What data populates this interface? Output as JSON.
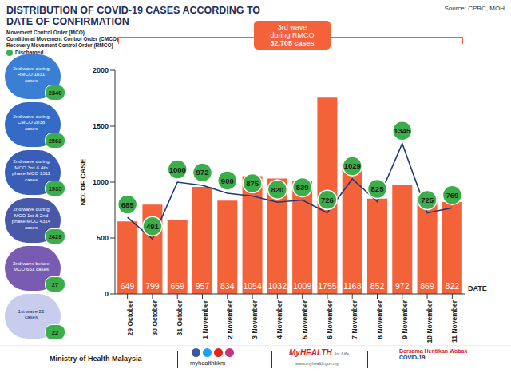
{
  "chart_data": {
    "type": "bar",
    "title": "DISTRIBUTION OF COVID-19 CASES ACCORDING TO DATE OF CONFIRMATION",
    "source": "Source: CPRC, MOH",
    "x_label": "DATE",
    "y_label": "NO. OF CASE",
    "categories": [
      "29 October",
      "30 October",
      "31 October",
      "1 November",
      "2 November",
      "3 November",
      "4 November",
      "5 November",
      "6 November",
      "7 November",
      "8 November",
      "9 November",
      "10 November",
      "11 November"
    ],
    "series": [
      {
        "type": "bar",
        "color": "#f4623a",
        "data_labels": true,
        "values": [
          649,
          799,
          659,
          957,
          834,
          1054,
          1032,
          1009,
          1755,
          1168,
          852,
          972,
          869,
          822
        ]
      },
      {
        "name": "Discharged",
        "type": "line",
        "color": "#1e3a78",
        "data_labels": true,
        "values": [
          685,
          491,
          1000,
          972,
          900,
          875,
          820,
          839,
          726,
          1029,
          825,
          1345,
          725,
          769
        ]
      }
    ],
    "ylim": [
      0,
      2000
    ],
    "yticks": [
      0,
      500,
      1000,
      1500,
      2000
    ],
    "grid": false,
    "annotations": [
      "Movement Control Order (MCO)",
      "Conditional Movement Control Order (CMCO)",
      "Recovery Movement Control Order (RMCO)"
    ],
    "wave_box": [
      "3rd wave",
      "during RMCO",
      "32,705 cases"
    ],
    "waves": [
      {
        "label": "2nd wave during RMCO 1831 cases",
        "discharged": 2340,
        "color": "#3a7fd4"
      },
      {
        "label": "2nd wave during CMCO 2038 cases",
        "discharged": 2562,
        "color": "#356bc6"
      },
      {
        "label": "2nd wave during MCO 3rd & 4th phase MCO 1311 cases",
        "discharged": 1935,
        "color": "#3a5db5"
      },
      {
        "label": "2nd wave during MCO 1st & 2nd phase MCO 4314 cases",
        "discharged": 2429,
        "color": "#4a58a8"
      },
      {
        "label": "2nd wave before MCO 651 cases",
        "discharged": 27,
        "color": "#7a5bb2"
      },
      {
        "label": "1st wave 22 cases",
        "discharged": 22,
        "color": "#c8cdee"
      }
    ],
    "footer": [
      "Ministry of Health Malaysia",
      "myhealthkkm",
      "MyHEALTH",
      "for Life",
      "www.myhealth.gov.my",
      "Bersama Hentikan Wabak",
      "COVID-19"
    ]
  }
}
